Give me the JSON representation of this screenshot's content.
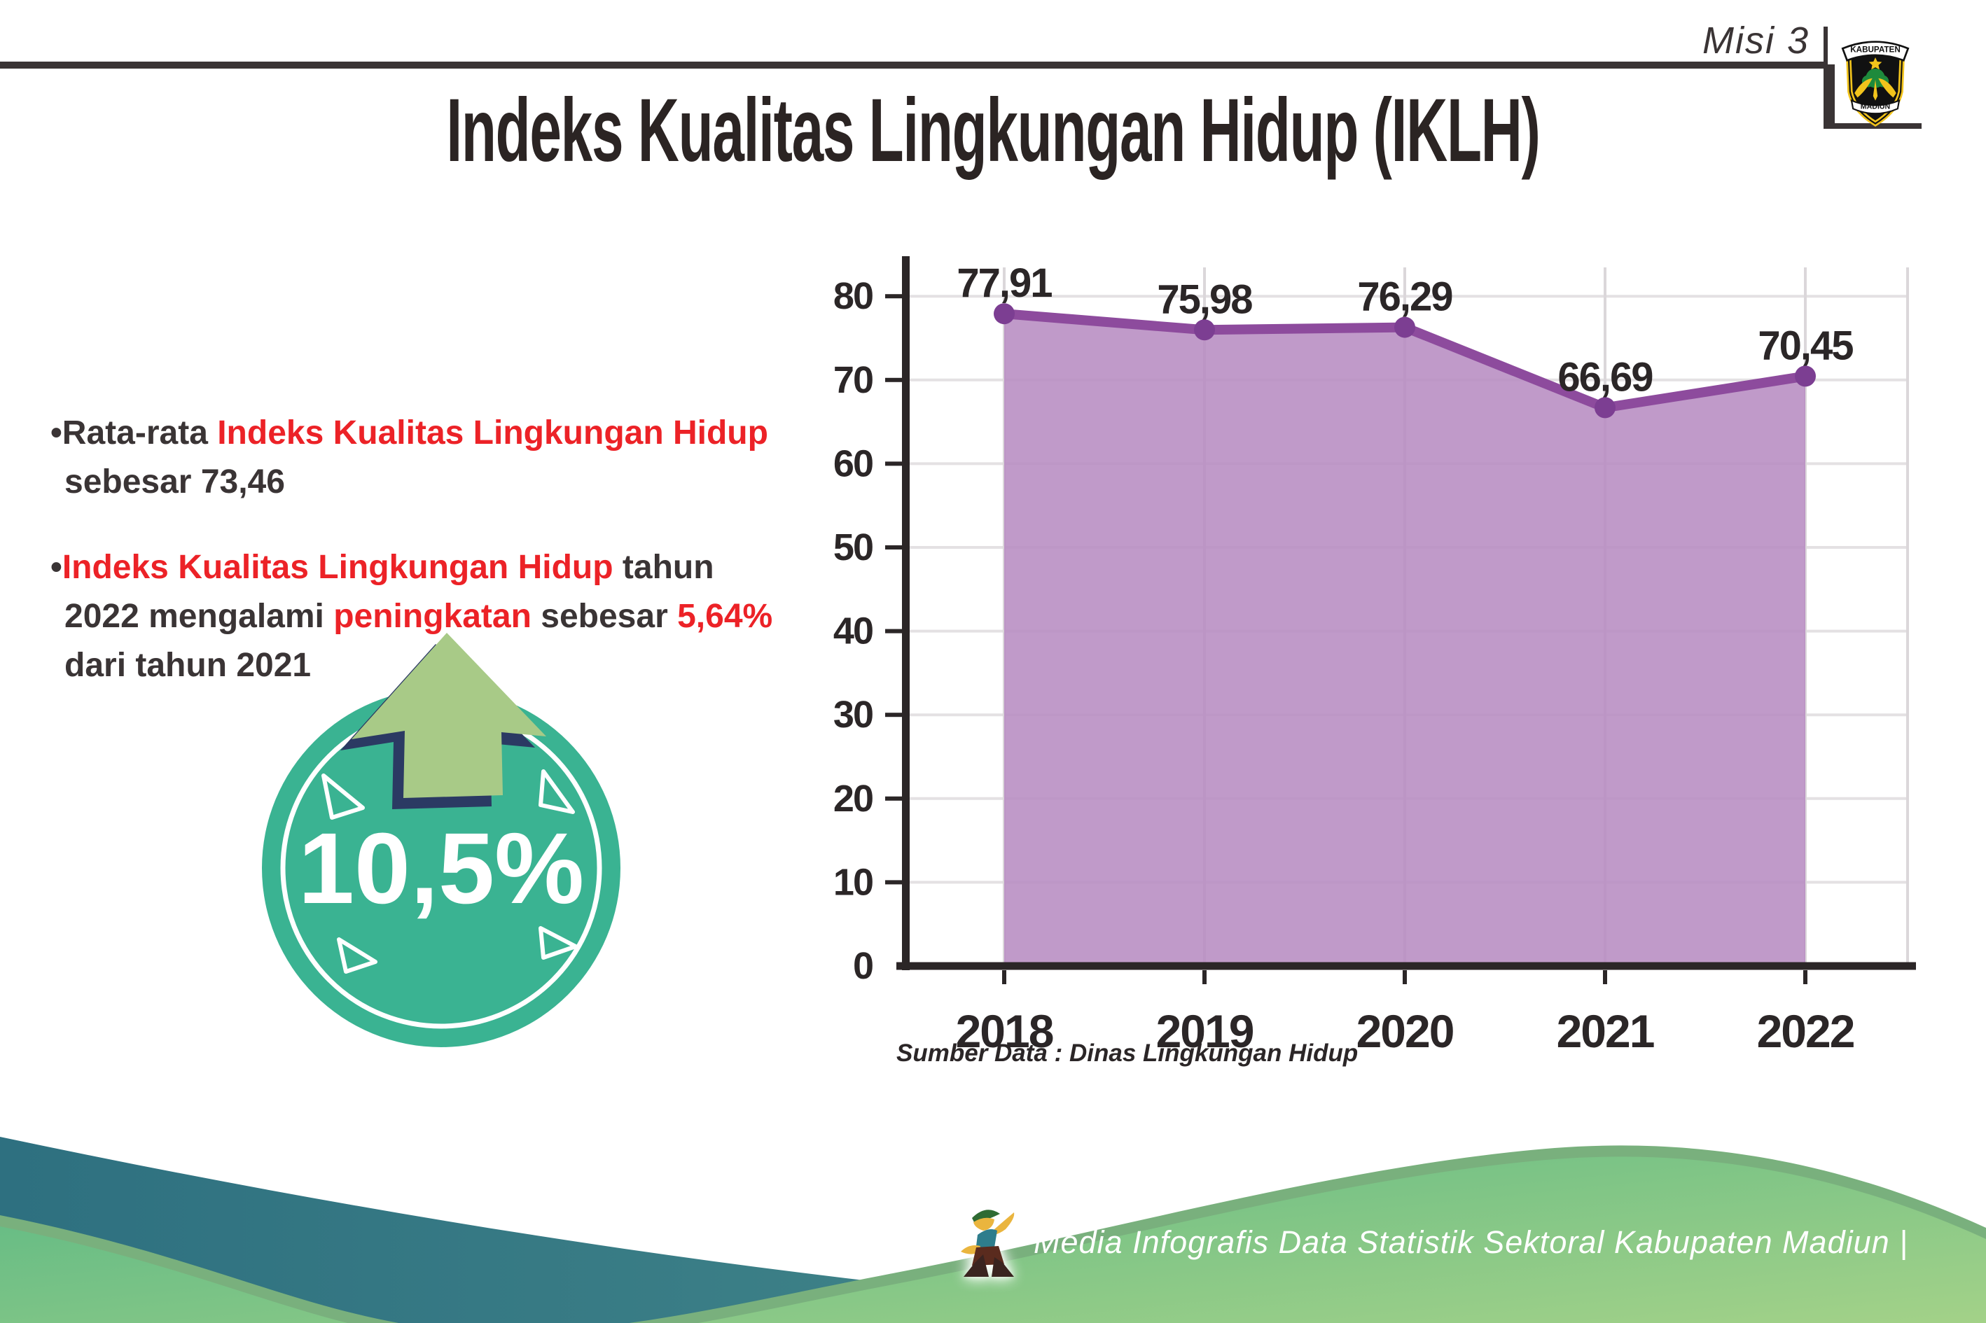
{
  "header": {
    "misi_label": "Misi 3",
    "title": "Indeks Kualitas Lingkungan Hidup (IKLH)",
    "emblem": {
      "top_banner": "KABUPATEN",
      "bottom_banner": "MADIUN"
    }
  },
  "bullets": {
    "b1": {
      "dark1": "•Rata-rata ",
      "red1": "Indeks Kualitas Lingkungan Hidup",
      "dark2": " sebesar 73,46"
    },
    "b2": {
      "bullet": "•",
      "red1": "Indeks Kualitas Lingkungan Hidup",
      "dark1": " tahun 2022 mengalami ",
      "red2": "peningkatan",
      "dark2": " sebesar ",
      "red3": "5,64%",
      "dark3": " dari tahun 2021"
    }
  },
  "badge": {
    "value": "10,5%"
  },
  "chart_data": {
    "type": "area",
    "title": "Indeks Kualitas Lingkungan Hidup (IKLH)",
    "categories": [
      "2018",
      "2019",
      "2020",
      "2021",
      "2022"
    ],
    "series": [
      {
        "name": "IKLH",
        "values": [
          77.91,
          75.98,
          76.29,
          66.69,
          70.45
        ]
      }
    ],
    "value_labels": [
      "77,91",
      "75,98",
      "76,29",
      "66,69",
      "70,45"
    ],
    "ylim": [
      0,
      80
    ],
    "ytick_step": 10,
    "grid": true,
    "xlabel": "",
    "ylabel": "",
    "source": "Sumber Data : Dinas Lingkungan Hidup"
  },
  "footer": {
    "credit": "Media Infografis Data Statistik Sektoral Kabupaten Madiun |"
  },
  "colors": {
    "text_dark": "#2b2627",
    "accent_red": "#ec2227",
    "area_fill": "#b78cc2",
    "line_purple": "#8d4b9d",
    "point_purple": "#7c3e92",
    "badge_teal": "#3ab392",
    "arrow_green": "#a8ca87",
    "arrow_outline_navy": "#2b3a63",
    "wave_teal_dark": "#2e7080",
    "wave_teal_light": "#4f9590",
    "wave_green_light": "#5bb884",
    "wave_green_pale": "#aad489",
    "wave_green_edge": "#79b07d"
  }
}
